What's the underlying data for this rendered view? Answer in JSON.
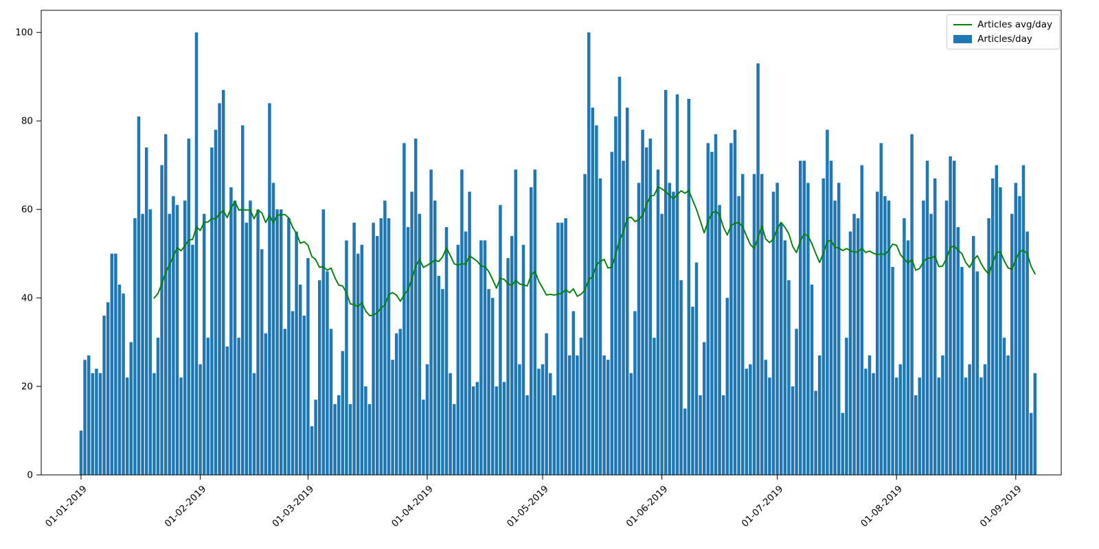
{
  "chart_data": {
    "type": "bar",
    "title": "",
    "xlabel": "",
    "ylabel": "",
    "grid": false,
    "background": "#ffffff",
    "spine_color": "#000000",
    "ylim": [
      0,
      105
    ],
    "y_ticks": [
      0,
      20,
      40,
      60,
      80,
      100
    ],
    "x_start_date": "01-01-2019",
    "x_tick_labels": [
      "01-01-2019",
      "01-02-2019",
      "01-03-2019",
      "01-04-2019",
      "01-05-2019",
      "01-06-2019",
      "01-07-2019",
      "01-08-2019",
      "01-09-2019"
    ],
    "x_tick_indices": [
      0,
      31,
      59,
      90,
      120,
      151,
      181,
      212,
      243
    ],
    "values": [
      10,
      26,
      27,
      23,
      24,
      23,
      36,
      39,
      50,
      50,
      43,
      41,
      22,
      30,
      58,
      81,
      59,
      74,
      60,
      23,
      31,
      70,
      77,
      59,
      63,
      61,
      22,
      62,
      76,
      52,
      100,
      25,
      59,
      31,
      74,
      78,
      84,
      87,
      29,
      65,
      62,
      31,
      79,
      57,
      62,
      23,
      60,
      51,
      32,
      84,
      66,
      60,
      60,
      33,
      58,
      37,
      55,
      43,
      36,
      49,
      11,
      17,
      44,
      60,
      46,
      33,
      16,
      18,
      28,
      53,
      16,
      57,
      50,
      52,
      20,
      16,
      57,
      54,
      58,
      62,
      58,
      26,
      32,
      33,
      75,
      56,
      64,
      76,
      59,
      17,
      25,
      69,
      62,
      45,
      42,
      56,
      23,
      16,
      52,
      69,
      55,
      64,
      20,
      21,
      53,
      53,
      42,
      40,
      20,
      61,
      21,
      49,
      54,
      69,
      25,
      52,
      18,
      65,
      69,
      24,
      25,
      32,
      23,
      18,
      57,
      57,
      58,
      27,
      37,
      27,
      31,
      68,
      100,
      83,
      79,
      67,
      27,
      26,
      73,
      81,
      90,
      71,
      83,
      23,
      37,
      66,
      78,
      74,
      76,
      31,
      69,
      59,
      87,
      66,
      64,
      86,
      44,
      15,
      85,
      38,
      48,
      18,
      30,
      75,
      73,
      77,
      61,
      18,
      40,
      75,
      78,
      63,
      68,
      24,
      25,
      68,
      93,
      68,
      26,
      22,
      64,
      66,
      57,
      53,
      44,
      20,
      33,
      71,
      71,
      66,
      43,
      19,
      27,
      67,
      78,
      71,
      62,
      66,
      14,
      31,
      55,
      59,
      58,
      70,
      24,
      27,
      23,
      64,
      75,
      63,
      62,
      47,
      22,
      25,
      58,
      53,
      77,
      18,
      22,
      62,
      71,
      59,
      67,
      22,
      27,
      62,
      72,
      71,
      56,
      47,
      22,
      25,
      54,
      46,
      22,
      25,
      58,
      67,
      70,
      65,
      31,
      27,
      59,
      66,
      63,
      70,
      55,
      14,
      23
    ],
    "series": [
      {
        "name": "Articles/day",
        "type": "bar",
        "color": "#1f77b4"
      },
      {
        "name": "Articles avg/day",
        "type": "line",
        "color": "#008000",
        "derived": "rolling_mean",
        "window": 20
      }
    ],
    "legend": {
      "position": "upper right",
      "entries": [
        {
          "label": "Articles avg/day",
          "marker": "line",
          "color": "#008000"
        },
        {
          "label": "Articles/day",
          "marker": "patch",
          "color": "#1f77b4"
        }
      ]
    }
  }
}
